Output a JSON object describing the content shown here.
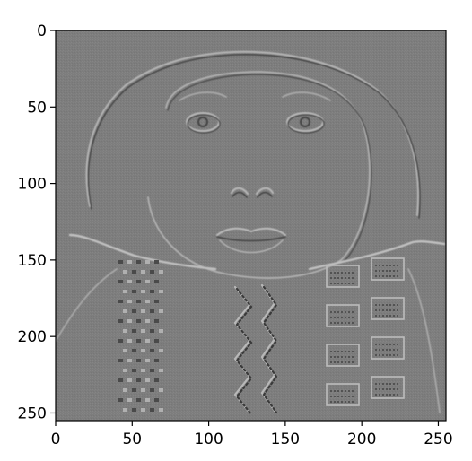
{
  "figure": {
    "image": {
      "description": "",
      "xlim": [
        0,
        255
      ],
      "ylim": [
        255,
        0
      ],
      "colormap": "gray",
      "background_gray": "#7d7d7d"
    },
    "x_axis": {
      "ticks": [
        "0",
        "50",
        "100",
        "150",
        "200",
        "250"
      ],
      "tick_values": [
        0,
        50,
        100,
        150,
        200,
        250
      ]
    },
    "y_axis": {
      "ticks": [
        "0",
        "50",
        "100",
        "150",
        "200",
        "250"
      ],
      "tick_values": [
        0,
        50,
        100,
        150,
        200,
        250
      ]
    }
  }
}
